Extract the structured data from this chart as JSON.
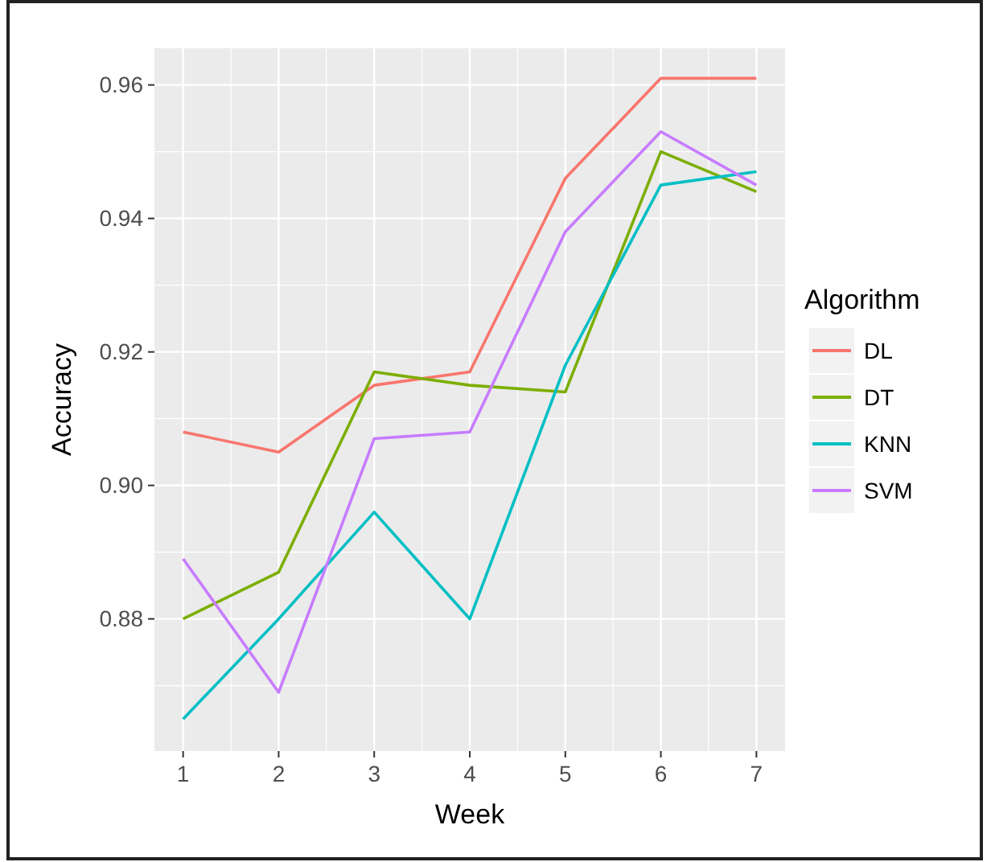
{
  "chart_data": {
    "type": "line",
    "xlabel": "Week",
    "ylabel": "Accuracy",
    "legend_title": "Algorithm",
    "legend": "right",
    "grid": true,
    "x": [
      1,
      2,
      3,
      4,
      5,
      6,
      7
    ],
    "xlim": [
      0.7,
      7.3
    ],
    "xticks": [
      1,
      2,
      3,
      4,
      5,
      6,
      7
    ],
    "ylim": [
      0.8602,
      0.9655
    ],
    "yticks": [
      0.88,
      {
        "value": 0.9,
        "label": "0.90"
      },
      0.92,
      0.94,
      0.96
    ],
    "series": [
      {
        "name": "DL",
        "color": "#f8766d",
        "values": [
          0.908,
          0.905,
          0.915,
          0.917,
          0.946,
          0.961,
          0.961
        ]
      },
      {
        "name": "DT",
        "color": "#7cae00",
        "values": [
          0.88,
          0.887,
          0.917,
          0.915,
          0.914,
          0.95,
          0.944
        ]
      },
      {
        "name": "KNN",
        "color": "#00bfc4",
        "values": [
          0.865,
          0.88,
          0.896,
          0.88,
          0.918,
          0.945,
          0.947
        ]
      },
      {
        "name": "SVM",
        "color": "#c77cff",
        "values": [
          0.889,
          0.869,
          0.907,
          0.908,
          0.938,
          0.953,
          0.945
        ]
      }
    ]
  }
}
